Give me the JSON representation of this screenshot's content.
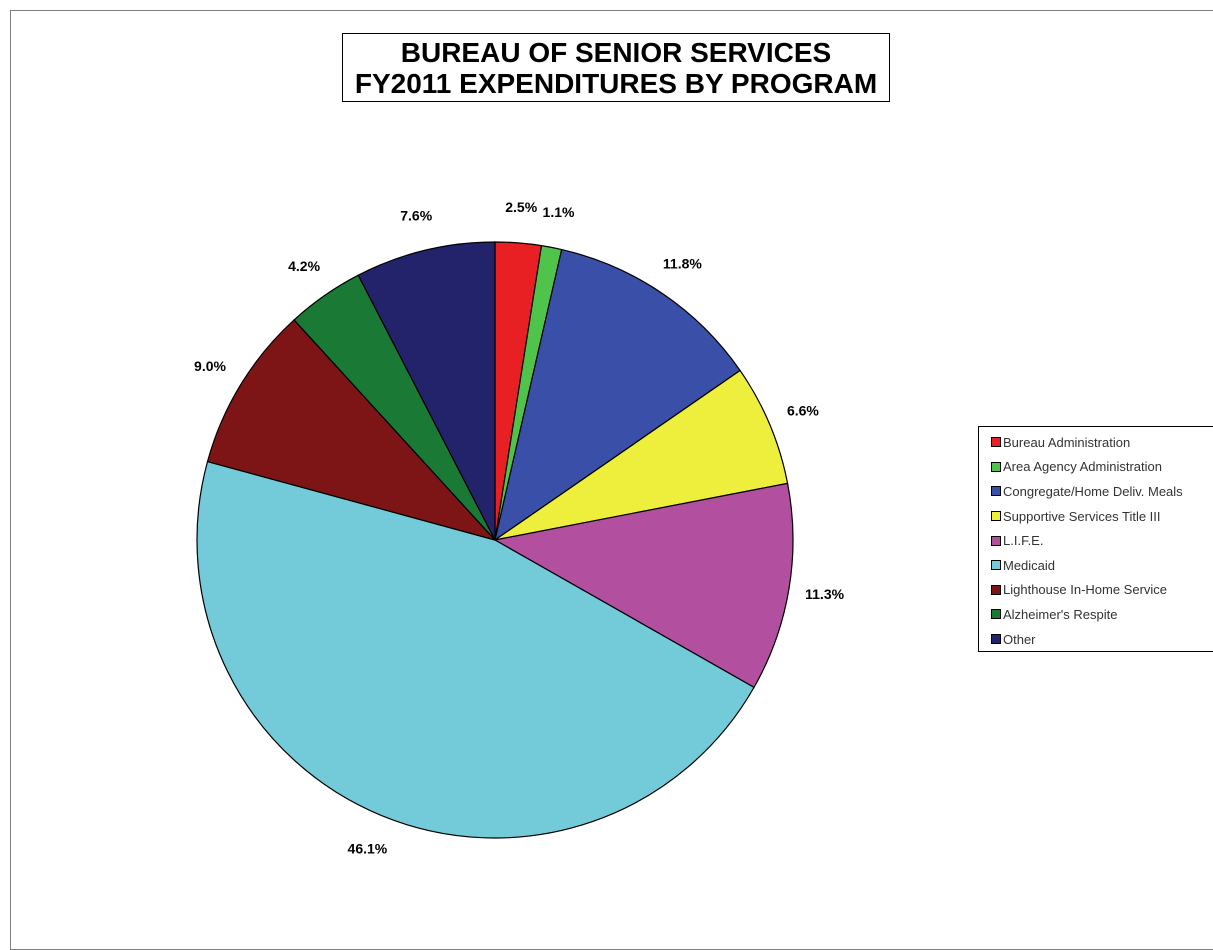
{
  "chart_data": {
    "type": "pie",
    "title": [
      "BUREAU OF SENIOR SERVICES",
      "FY2011 EXPENDITURES BY PROGRAM"
    ],
    "legend_position": "right",
    "slices": [
      {
        "name": "Bureau Administration",
        "value": 2.5,
        "label": "2.5%",
        "color": "#e82024"
      },
      {
        "name": "Area Agency Administration",
        "value": 1.1,
        "label": "1.1%",
        "color": "#4fc34a"
      },
      {
        "name": "Congregate/Home Deliv. Meals",
        "value": 11.8,
        "label": "11.8%",
        "color": "#3a4fa8"
      },
      {
        "name": "Supportive Services Title III",
        "value": 6.6,
        "label": "6.6%",
        "color": "#eeee3c"
      },
      {
        "name": "L.I.F.E.",
        "value": 11.3,
        "label": "11.3%",
        "color": "#b24f9f"
      },
      {
        "name": "Medicaid",
        "value": 46.1,
        "label": "46.1%",
        "color": "#73cad8"
      },
      {
        "name": "Lighthouse In-Home Service",
        "value": 9.0,
        "label": "9.0%",
        "color": "#7d1516"
      },
      {
        "name": "Alzheimer's Respite",
        "value": 4.2,
        "label": "4.2%",
        "color": "#1a7a35"
      },
      {
        "name": "Other",
        "value": 7.6,
        "label": "7.6%",
        "color": "#23236b"
      }
    ]
  }
}
